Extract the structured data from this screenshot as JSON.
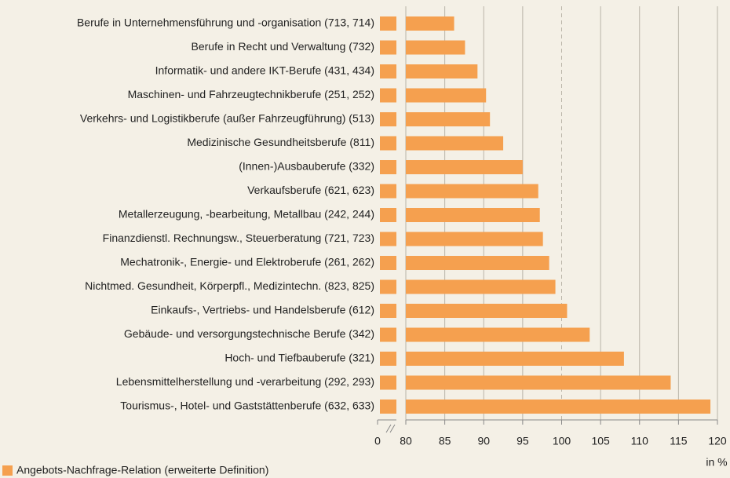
{
  "chart_data": {
    "type": "bar",
    "orientation": "horizontal",
    "axis_break": true,
    "categories": [
      "Berufe in Unternehmensführung und -organisation (713, 714)",
      "Berufe in Recht und Verwaltung (732)",
      "Informatik- und andere IKT-Berufe (431, 434)",
      "Maschinen- und Fahrzeugtechnikberufe (251, 252)",
      "Verkehrs- und Logistikberufe (außer Fahrzeugführung) (513)",
      "Medizinische Gesundheitsberufe (811)",
      "(Innen-)Ausbauberufe (332)",
      "Verkaufsberufe (621, 623)",
      "Metallerzeugung, -bearbeitung, Metallbau (242, 244)",
      "Finanzdienstl. Rechnungsw., Steuerberatung (721, 723)",
      "Mechatronik-, Energie- und Elektroberufe (261, 262)",
      "Nichtmed. Gesundheit, Körperpfl., Medizintechn. (823, 825)",
      "Einkaufs-, Vertriebs- und Handelsberufe (612)",
      "Gebäude- und versorgungstechnische Berufe (342)",
      "Hoch- und Tiefbauberufe (321)",
      "Lebensmittelherstellung und -verarbeitung (292, 293)",
      "Tourismus-, Hotel- und Gaststättenberufe (632, 633)"
    ],
    "series": [
      {
        "name": "Angebots-Nachfrage-Relation (erweiterte Definition)",
        "color": "#f5a04f",
        "values": [
          86.2,
          87.6,
          89.2,
          90.3,
          90.8,
          92.5,
          95.0,
          97.0,
          97.2,
          97.6,
          98.4,
          99.2,
          100.7,
          103.6,
          108.0,
          114.0,
          119.1
        ]
      }
    ],
    "xlim": [
      80,
      120
    ],
    "xticks": [
      0,
      80,
      85,
      90,
      95,
      100,
      105,
      110,
      115,
      120
    ],
    "xlabel": "in %",
    "reference_line": 100,
    "grid": true,
    "legend": "bottom-left"
  }
}
